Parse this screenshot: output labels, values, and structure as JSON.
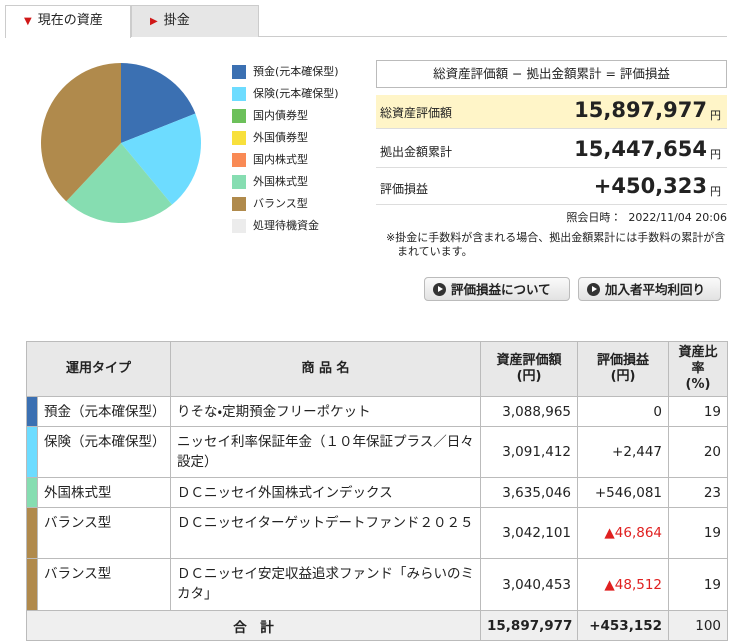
{
  "tabs": [
    {
      "label": "現在の資産",
      "active": true
    },
    {
      "label": "掛金",
      "active": false
    }
  ],
  "chart_data": {
    "type": "pie",
    "categories": [
      "預金(元本確保型)",
      "保険(元本確保型)",
      "国内債券型",
      "外国債券型",
      "国内株式型",
      "外国株式型",
      "バランス型",
      "処理待機資金"
    ],
    "colors": [
      "#3b70b2",
      "#6ddcff",
      "#6cc05a",
      "#f8e03c",
      "#f98a55",
      "#86ddb1",
      "#b08a4c",
      "#ececec"
    ],
    "values": [
      19,
      20,
      0,
      0,
      0,
      23,
      38,
      0
    ]
  },
  "summary": {
    "header": "総資産評価額 − 拠出金額累計 = 評価損益",
    "unit": "円",
    "rows": [
      {
        "label": "総資産評価額",
        "value": "15,897,977"
      },
      {
        "label": "拠出金額累計",
        "value": "15,447,654"
      },
      {
        "label": "評価損益",
        "value": "+450,323"
      }
    ],
    "date_label": "照会日時：",
    "date": "2022/11/04 20:06",
    "note": "※掛金に手数料が含まれる場合、拠出金額累計には手数料の累計が含まれています。"
  },
  "buttons": [
    "評価損益について",
    "加入者平均利回り"
  ],
  "table": {
    "header": [
      [
        "運用タイプ"
      ],
      [
        "商 品 名"
      ],
      [
        "資産評価額",
        "(円)"
      ],
      [
        "評価損益",
        "(円)"
      ],
      [
        "資産比率",
        "(%)"
      ]
    ],
    "rows": [
      {
        "color": "#3b70b2",
        "cells": [
          "預金（元本確保型）",
          "りそな・定期預金フリーポケット",
          "3,088,965",
          "0",
          "19"
        ]
      },
      {
        "color": "#6ddcff",
        "cells": [
          "保険（元本確保型）",
          "ニッセイ利率保証年金（１０年保証プラス／日々設定）",
          "3,091,412",
          "+2,447",
          "20"
        ]
      },
      {
        "color": "#86ddb1",
        "cells": [
          "外国株式型",
          "ＤＣニッセイ外国株式インデックス",
          "3,635,046",
          "+546,081",
          "23"
        ]
      },
      {
        "color": "#b08a4c",
        "cells": [
          "バランス型",
          "ＤＣニッセイターゲットデートファンド２０２５",
          "3,042,101",
          "▲46,864",
          "19"
        ],
        "profit_color": "#e02020"
      },
      {
        "color": "#b08a4c",
        "cells": [
          "バランス型",
          "ＤＣニッセイ安定収益追求ファンド「みらいのミカタ」",
          "3,040,453",
          "▲48,512",
          "19"
        ],
        "profit_color": "#e02020"
      }
    ],
    "total": [
      "合　計",
      "15,897,977",
      "+453,152",
      "100"
    ]
  }
}
